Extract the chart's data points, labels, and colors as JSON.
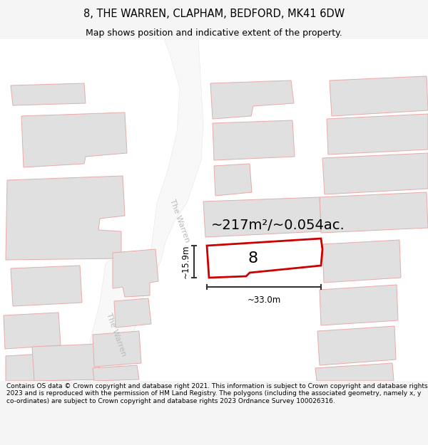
{
  "title": "8, THE WARREN, CLAPHAM, BEDFORD, MK41 6DW",
  "subtitle": "Map shows position and indicative extent of the property.",
  "footer": "Contains OS data © Crown copyright and database right 2021. This information is subject to Crown copyright and database rights 2023 and is reproduced with the permission of HM Land Registry. The polygons (including the associated geometry, namely x, y co-ordinates) are subject to Crown copyright and database rights 2023 Ordnance Survey 100026316.",
  "area_label": "~217m²/~0.054ac.",
  "plot_number": "8",
  "dim_width": "~33.0m",
  "dim_height": "~15.9m",
  "road_label_upper": "The Warren",
  "road_label_lower": "The Warren",
  "bg_color": "#f5f5f5",
  "map_bg": "#ffffff",
  "building_fill": "#e0e0e0",
  "building_edge_light": "#e8aaaa",
  "building_edge_dark": "#d08888",
  "highlight_edge": "#cc0000",
  "highlight_fill": "#ffffff",
  "dim_color": "#333333",
  "title_fontsize": 10.5,
  "subtitle_fontsize": 9,
  "footer_fontsize": 6.5,
  "area_fontsize": 14,
  "plot_num_fontsize": 16,
  "road_fontsize": 8
}
